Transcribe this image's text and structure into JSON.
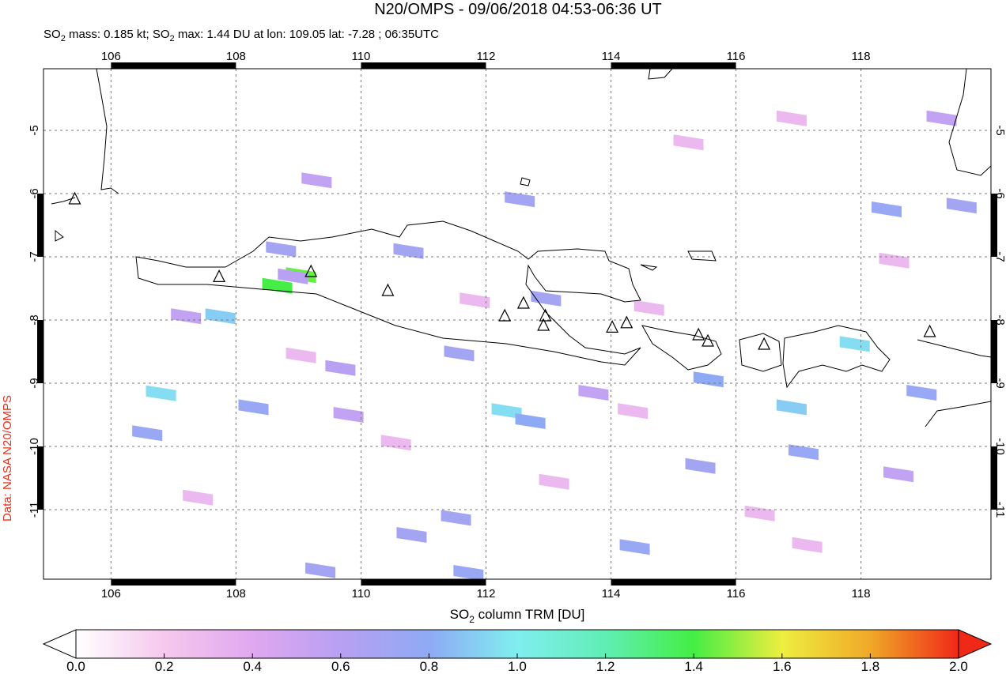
{
  "chart_data": {
    "type": "map",
    "title": "N20/OMPS - 09/06/2018 04:53-06:36 UT",
    "subtitle": [
      "SO",
      "2",
      " mass: 0.185 kt; SO",
      "2",
      " max: 1.44 DU at lon: 109.05 lat: -7.28 ; 06:35UTC"
    ],
    "side_label": "Data: NASA N20/OMPS",
    "xlim": [
      104.92,
      120.08
    ],
    "ylim": [
      -12.1,
      -4.025
    ],
    "xticks": [
      106,
      108,
      110,
      112,
      114,
      116,
      118
    ],
    "yticks": [
      -5,
      -6,
      -7,
      -8,
      -9,
      -10,
      -11
    ],
    "grid": true,
    "colorbar": {
      "label": [
        "SO",
        "2",
        " column TRM [DU]"
      ],
      "lim": [
        0,
        2
      ],
      "ticks": [
        {
          "value": 0,
          "label": "0.0"
        },
        {
          "value": 0.2,
          "label": "0.2"
        },
        {
          "value": 0.4,
          "label": "0.4"
        },
        {
          "value": 0.6,
          "label": "0.6"
        },
        {
          "value": 0.8,
          "label": "0.8"
        },
        {
          "value": 1,
          "label": "1.0"
        },
        {
          "value": 1.2,
          "label": "1.2"
        },
        {
          "value": 1.4,
          "label": "1.4"
        },
        {
          "value": 1.6,
          "label": "1.6"
        },
        {
          "value": 1.8,
          "label": "1.8"
        },
        {
          "value": 2,
          "label": "2.0"
        }
      ],
      "colors": [
        "#ffffff",
        "#f6c8ee",
        "#e0a8f0",
        "#b8a0f2",
        "#8eaaf4",
        "#80eef0",
        "#60eeb4",
        "#44ee44",
        "#eeee40",
        "#f0a828",
        "#f02818"
      ]
    },
    "so2_pixels": [
      {
        "lon": 108.66,
        "lat": -7.46,
        "value": 1.4
      },
      {
        "lon": 109.04,
        "lat": -7.29,
        "value": 1.44
      },
      {
        "lon": 108.91,
        "lat": -7.31,
        "value": 0.6
      },
      {
        "lon": 108.72,
        "lat": -6.88,
        "value": 0.7
      },
      {
        "lon": 107.75,
        "lat": -7.94,
        "value": 0.9
      },
      {
        "lon": 106.8,
        "lat": -9.16,
        "value": 0.95
      },
      {
        "lon": 106.58,
        "lat": -9.79,
        "value": 0.75
      },
      {
        "lon": 108.28,
        "lat": -9.38,
        "value": 0.75
      },
      {
        "lon": 112.33,
        "lat": -9.44,
        "value": 0.95
      },
      {
        "lon": 112.71,
        "lat": -9.6,
        "value": 0.8
      },
      {
        "lon": 115.56,
        "lat": -8.94,
        "value": 0.8
      },
      {
        "lon": 116.89,
        "lat": -9.38,
        "value": 0.9
      },
      {
        "lon": 117.08,
        "lat": -10.09,
        "value": 0.75
      },
      {
        "lon": 118.41,
        "lat": -6.25,
        "value": 0.75
      },
      {
        "lon": 118.97,
        "lat": -9.15,
        "value": 0.75
      },
      {
        "lon": 117.9,
        "lat": -8.38,
        "value": 0.95
      },
      {
        "lon": 112.96,
        "lat": -7.66,
        "value": 0.7
      },
      {
        "lon": 110.76,
        "lat": -6.91,
        "value": 0.7
      },
      {
        "lon": 112.54,
        "lat": -6.09,
        "value": 0.7
      },
      {
        "lon": 111.57,
        "lat": -8.53,
        "value": 0.7
      },
      {
        "lon": 111.52,
        "lat": -11.13,
        "value": 0.7
      },
      {
        "lon": 111.72,
        "lat": -12.0,
        "value": 0.75
      },
      {
        "lon": 110.81,
        "lat": -11.4,
        "value": 0.7
      },
      {
        "lon": 114.38,
        "lat": -11.59,
        "value": 0.75
      },
      {
        "lon": 115.43,
        "lat": -10.31,
        "value": 0.7
      },
      {
        "lon": 119.61,
        "lat": -6.19,
        "value": 0.7
      },
      {
        "lon": 109.35,
        "lat": -11.96,
        "value": 0.7
      },
      {
        "lon": 109.67,
        "lat": -8.76,
        "value": 0.6
      },
      {
        "lon": 113.72,
        "lat": -9.15,
        "value": 0.55
      },
      {
        "lon": 119.29,
        "lat": -4.81,
        "value": 0.55
      },
      {
        "lon": 107.2,
        "lat": -7.94,
        "value": 0.55
      },
      {
        "lon": 109.29,
        "lat": -5.79,
        "value": 0.55
      },
      {
        "lon": 118.6,
        "lat": -10.44,
        "value": 0.55
      },
      {
        "lon": 109.8,
        "lat": -9.5,
        "value": 0.55
      },
      {
        "lon": 110.56,
        "lat": -9.94,
        "value": 0.3
      },
      {
        "lon": 114.35,
        "lat": -9.44,
        "value": 0.3
      },
      {
        "lon": 115.24,
        "lat": -5.19,
        "value": 0.3
      },
      {
        "lon": 116.89,
        "lat": -4.81,
        "value": 0.3
      },
      {
        "lon": 118.53,
        "lat": -7.06,
        "value": 0.3
      },
      {
        "lon": 113.09,
        "lat": -10.56,
        "value": 0.3
      },
      {
        "lon": 107.39,
        "lat": -10.81,
        "value": 0.3
      },
      {
        "lon": 116.38,
        "lat": -11.06,
        "value": 0.3
      },
      {
        "lon": 117.14,
        "lat": -11.56,
        "value": 0.3
      },
      {
        "lon": 109.04,
        "lat": -8.56,
        "value": 0.3
      },
      {
        "lon": 111.82,
        "lat": -7.69,
        "value": 0.3
      },
      {
        "lon": 114.61,
        "lat": -7.81,
        "value": 0.3
      }
    ],
    "volcanoes": [
      {
        "lon": 105.42,
        "lat": -6.1
      },
      {
        "lon": 107.73,
        "lat": -7.33
      },
      {
        "lon": 109.2,
        "lat": -7.25
      },
      {
        "lon": 110.43,
        "lat": -7.55
      },
      {
        "lon": 112.3,
        "lat": -7.95
      },
      {
        "lon": 112.6,
        "lat": -7.75
      },
      {
        "lon": 112.95,
        "lat": -7.95
      },
      {
        "lon": 112.92,
        "lat": -8.1
      },
      {
        "lon": 114.02,
        "lat": -8.13
      },
      {
        "lon": 114.25,
        "lat": -8.06
      },
      {
        "lon": 115.4,
        "lat": -8.25
      },
      {
        "lon": 115.55,
        "lat": -8.35
      },
      {
        "lon": 116.45,
        "lat": -8.4
      },
      {
        "lon": 119.1,
        "lat": -8.2
      }
    ]
  }
}
